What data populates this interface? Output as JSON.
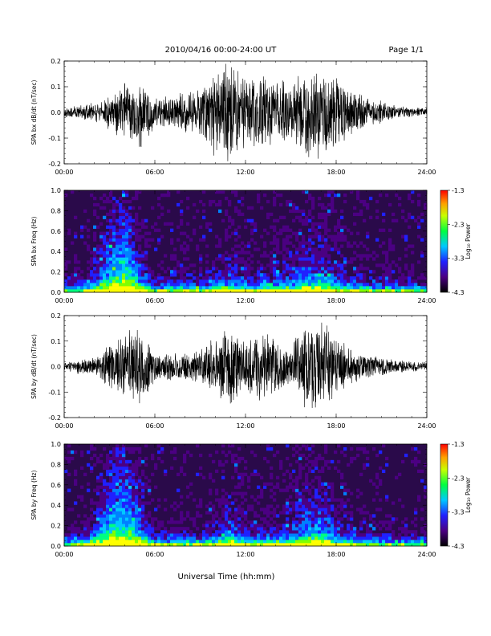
{
  "header": {
    "title": "2010/04/16  00:00-24:00 UT",
    "page": "Page 1/1"
  },
  "xlabel": "Universal Time (hh:mm)",
  "colors": {
    "trace": "#000000",
    "spectrogram_background": "#2a0a4a"
  },
  "chart_data": [
    {
      "type": "line",
      "name": "bx-waveform",
      "ylabel": "SPA bx dB/dt (nT/sec)",
      "x_ticks": [
        "00:00",
        "06:00",
        "12:00",
        "18:00",
        "24:00"
      ],
      "y_ticks": [
        "0.2",
        "0.1",
        "0.0",
        "-0.1",
        "-0.2"
      ],
      "xlim": [
        0,
        24
      ],
      "ylim": [
        -0.2,
        0.2
      ],
      "envelope_hours": [
        0,
        1,
        2,
        3,
        4,
        5,
        6,
        7,
        8,
        9,
        10,
        11,
        12,
        13,
        14,
        15,
        16,
        17,
        18,
        19,
        20,
        21,
        22,
        23,
        24
      ],
      "envelope_amplitude": [
        0.02,
        0.03,
        0.04,
        0.07,
        0.12,
        0.16,
        0.06,
        0.07,
        0.08,
        0.1,
        0.2,
        0.2,
        0.15,
        0.16,
        0.14,
        0.12,
        0.18,
        0.2,
        0.14,
        0.1,
        0.06,
        0.05,
        0.03,
        0.02,
        0.02
      ]
    },
    {
      "type": "heatmap",
      "name": "bx-spectrogram",
      "ylabel": "SPA bx Freq (Hz)",
      "x_ticks": [
        "00:00",
        "06:00",
        "12:00",
        "18:00",
        "24:00"
      ],
      "y_ticks": [
        "1.0",
        "0.8",
        "0.6",
        "0.4",
        "0.2",
        "0.0"
      ],
      "xlim": [
        0,
        24
      ],
      "ylim": [
        0,
        1
      ],
      "colorbar": {
        "label": "Log₁₀ Power",
        "ticks": [
          "-1.3",
          "-2.3",
          "-3.3",
          "-4.3"
        ],
        "range": [
          -4.3,
          -1.3
        ]
      },
      "activity_hours": [
        0,
        1,
        2,
        3,
        4,
        5,
        6,
        7,
        8,
        9,
        10,
        11,
        12,
        13,
        14,
        15,
        16,
        17,
        18,
        19,
        20,
        21,
        22,
        23,
        24
      ],
      "activity_level": [
        0.1,
        0.15,
        0.4,
        0.75,
        0.95,
        0.55,
        0.15,
        0.2,
        0.2,
        0.2,
        0.3,
        0.45,
        0.3,
        0.3,
        0.35,
        0.4,
        0.55,
        0.6,
        0.4,
        0.3,
        0.2,
        0.15,
        0.1,
        0.1,
        0.1
      ]
    },
    {
      "type": "line",
      "name": "by-waveform",
      "ylabel": "SPA by dB/dt (nT/sec)",
      "x_ticks": [
        "00:00",
        "06:00",
        "12:00",
        "18:00",
        "24:00"
      ],
      "y_ticks": [
        "0.2",
        "0.1",
        "0.0",
        "-0.1",
        "-0.2"
      ],
      "xlim": [
        0,
        24
      ],
      "ylim": [
        -0.2,
        0.2
      ],
      "envelope_hours": [
        0,
        1,
        2,
        3,
        4,
        5,
        6,
        7,
        8,
        9,
        10,
        11,
        12,
        13,
        14,
        15,
        16,
        17,
        18,
        19,
        20,
        21,
        22,
        23,
        24
      ],
      "envelope_amplitude": [
        0.02,
        0.03,
        0.04,
        0.09,
        0.14,
        0.18,
        0.06,
        0.06,
        0.06,
        0.07,
        0.12,
        0.2,
        0.1,
        0.14,
        0.12,
        0.08,
        0.19,
        0.2,
        0.14,
        0.07,
        0.05,
        0.04,
        0.03,
        0.02,
        0.02
      ]
    },
    {
      "type": "heatmap",
      "name": "by-spectrogram",
      "ylabel": "SPA by Freq (Hz)",
      "x_ticks": [
        "00:00",
        "06:00",
        "12:00",
        "18:00",
        "24:00"
      ],
      "y_ticks": [
        "1.0",
        "0.8",
        "0.6",
        "0.4",
        "0.2",
        "0.0"
      ],
      "xlim": [
        0,
        24
      ],
      "ylim": [
        0,
        1
      ],
      "colorbar": {
        "label": "Log₁₀ Power",
        "ticks": [
          "-1.3",
          "-2.3",
          "-3.3",
          "-4.3"
        ],
        "range": [
          -4.3,
          -1.3
        ]
      },
      "activity_hours": [
        0,
        1,
        2,
        3,
        4,
        5,
        6,
        7,
        8,
        9,
        10,
        11,
        12,
        13,
        14,
        15,
        16,
        17,
        18,
        19,
        20,
        21,
        22,
        23,
        24
      ],
      "activity_level": [
        0.1,
        0.15,
        0.45,
        0.8,
        0.95,
        0.6,
        0.15,
        0.2,
        0.2,
        0.2,
        0.3,
        0.5,
        0.3,
        0.3,
        0.35,
        0.4,
        0.6,
        0.65,
        0.4,
        0.3,
        0.2,
        0.15,
        0.1,
        0.1,
        0.1
      ]
    }
  ]
}
